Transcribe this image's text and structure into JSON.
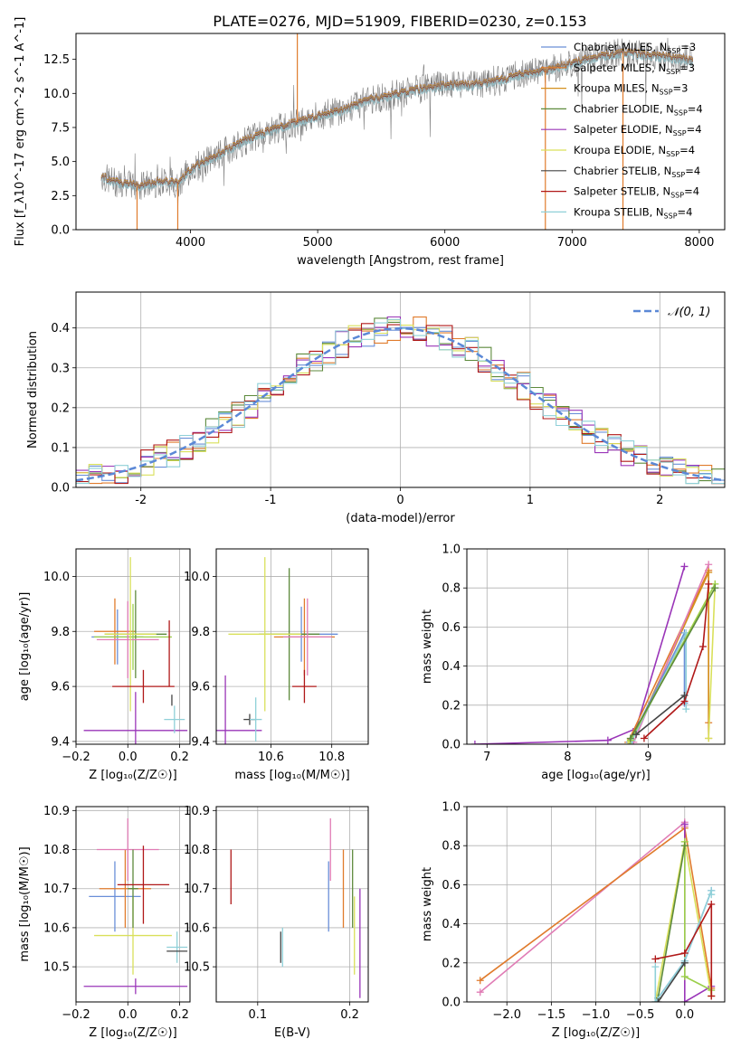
{
  "figure_title": "PLATE=0276, MJD=51909, FIBERID=0230, z=0.153",
  "colors": {
    "Chabrier MILES": "#6a8fd8",
    "Salpeter MILES": "#e07b2c",
    "Kroupa MILES": "#d4901e",
    "Chabrier ELODIE": "#5d8a3c",
    "Salpeter ELODIE": "#9a35b8",
    "Kroupa ELODIE": "#d9e05a",
    "Chabrier STELIB": "#444444",
    "Salpeter STELIB": "#b01818",
    "Kroupa STELIB": "#8fd0d8",
    "extra_pink": "#e07cb5",
    "extra_green": "#9bcf4a",
    "gauss": "#5b88d6",
    "data": "#808080"
  },
  "chart_data": [
    {
      "id": "spectrum",
      "type": "line",
      "xlabel": "wavelength [Angstrom, rest frame]",
      "ylabel": "Flux [f_λ10^-17 erg cm^-2 s^-1 A^-1]",
      "xlim": [
        3100,
        8200
      ],
      "ylim": [
        0,
        14.4
      ],
      "xticks": [
        4000,
        5000,
        6000,
        7000,
        8000
      ],
      "yticks": [
        0.0,
        2.5,
        5.0,
        7.5,
        10.0,
        12.5
      ],
      "grid": false,
      "legend_position": "right",
      "series": [
        {
          "name": "Chabrier MILES",
          "nssp": "3",
          "color": "#6a8fd8"
        },
        {
          "name": "Salpeter MILES",
          "nssp": "3",
          "color": "#e07b2c"
        },
        {
          "name": "Kroupa MILES",
          "nssp": "3",
          "color": "#d4901e"
        },
        {
          "name": "Chabrier ELODIE",
          "nssp": "4",
          "color": "#5d8a3c"
        },
        {
          "name": "Salpeter ELODIE",
          "nssp": "4",
          "color": "#9a35b8"
        },
        {
          "name": "Kroupa ELODIE",
          "nssp": "4",
          "color": "#d9e05a"
        },
        {
          "name": "Chabrier STELIB",
          "nssp": "4",
          "color": "#444444"
        },
        {
          "name": "Salpeter STELIB",
          "nssp": "4",
          "color": "#b01818"
        },
        {
          "name": "Kroupa STELIB",
          "nssp": "4",
          "color": "#8fd0d8"
        }
      ],
      "continuum": [
        [
          3300,
          3.9
        ],
        [
          3400,
          3.5
        ],
        [
          3600,
          3.2
        ],
        [
          3800,
          3.6
        ],
        [
          3900,
          3.4
        ],
        [
          4000,
          4.4
        ],
        [
          4200,
          5.4
        ],
        [
          4400,
          6.4
        ],
        [
          4600,
          7.2
        ],
        [
          4800,
          7.8
        ],
        [
          5000,
          8.3
        ],
        [
          5200,
          8.8
        ],
        [
          5400,
          9.5
        ],
        [
          5600,
          9.9
        ],
        [
          5800,
          10.3
        ],
        [
          6000,
          10.6
        ],
        [
          6200,
          10.6
        ],
        [
          6400,
          10.9
        ],
        [
          6600,
          11.4
        ],
        [
          6800,
          11.7
        ],
        [
          7000,
          12.2
        ],
        [
          7200,
          12.7
        ],
        [
          7400,
          13.0
        ],
        [
          7600,
          12.8
        ],
        [
          7800,
          12.6
        ],
        [
          7950,
          12.4
        ]
      ]
    },
    {
      "id": "residuals",
      "type": "step",
      "xlabel": "(data-model)/error",
      "ylabel": "Normed distribution",
      "xlim": [
        -2.5,
        2.5
      ],
      "ylim": [
        0,
        0.49
      ],
      "xticks": [
        -2,
        -1,
        0,
        1,
        2
      ],
      "yticks": [
        0.0,
        0.1,
        0.2,
        0.3,
        0.4
      ],
      "grid": true,
      "legend": [
        "𝒩(0, 1)"
      ],
      "legend_position": "top-right",
      "gauss_color": "#5b88d6"
    },
    {
      "id": "age-vs-Z",
      "type": "errorbar",
      "xlabel": "Z [log₁₀(Z/Z☉)]",
      "ylabel": "age [log₁₀(age/yr)]",
      "xlim": [
        -0.2,
        0.24
      ],
      "ylim": [
        9.39,
        10.1
      ],
      "xticks": [
        -0.2,
        0.0,
        0.2
      ],
      "xticklabels": [
        "−0.2",
        "0.0",
        "0.2"
      ],
      "yticks": [
        9.4,
        9.6,
        9.8,
        10.0
      ],
      "grid": true,
      "points": [
        {
          "x": -0.04,
          "y": 9.78,
          "xerr": 0.1,
          "yerr": 0.1,
          "color": "#6a8fd8"
        },
        {
          "x": -0.05,
          "y": 9.8,
          "xerr": 0.08,
          "yerr": 0.12,
          "color": "#e07b2c"
        },
        {
          "x": 0.02,
          "y": 9.78,
          "xerr": 0.15,
          "yerr": 0.12,
          "color": "#9bcf4a"
        },
        {
          "x": 0.03,
          "y": 9.79,
          "xerr": 0.12,
          "yerr": 0.16,
          "color": "#5d8a3c"
        },
        {
          "x": 0.0,
          "y": 9.77,
          "xerr": 0.12,
          "yerr": 0.14,
          "color": "#e07cb5"
        },
        {
          "x": 0.01,
          "y": 9.79,
          "xerr": 0.1,
          "yerr": 0.28,
          "color": "#d9e05a"
        },
        {
          "x": 0.03,
          "y": 9.44,
          "xerr": 0.2,
          "yerr": 0.14,
          "color": "#9a35b8"
        },
        {
          "x": 0.06,
          "y": 9.6,
          "xerr": 0.12,
          "yerr": 0.06,
          "color": "#b01818"
        },
        {
          "x": 0.16,
          "y": 9.72,
          "xerr": 0.0,
          "yerr": 0.12,
          "color": "#b01818"
        },
        {
          "x": 0.17,
          "y": 9.55,
          "xerr": 0.0,
          "yerr": 0.02,
          "color": "#444444"
        },
        {
          "x": 0.18,
          "y": 9.48,
          "xerr": 0.04,
          "yerr": 0.05,
          "color": "#8fd0d8"
        }
      ]
    },
    {
      "id": "age-vs-mass",
      "type": "errorbar",
      "xlabel": "mass [log₁₀(M/M☉)]",
      "ylabel": "",
      "xlim": [
        10.42,
        10.92
      ],
      "ylim": [
        9.39,
        10.1
      ],
      "xticks": [
        10.6,
        10.8
      ],
      "xticklabels": [
        "10.6",
        "10.8"
      ],
      "yticks": [
        9.4,
        9.6,
        9.8,
        10.0
      ],
      "grid": true,
      "points": [
        {
          "x": 10.7,
          "y": 9.79,
          "xerr": 0.12,
          "yerr": 0.1,
          "color": "#6a8fd8"
        },
        {
          "x": 10.71,
          "y": 9.78,
          "xerr": 0.1,
          "yerr": 0.14,
          "color": "#e07b2c"
        },
        {
          "x": 10.66,
          "y": 9.79,
          "xerr": 0.1,
          "yerr": 0.24,
          "color": "#5d8a3c"
        },
        {
          "x": 10.58,
          "y": 9.79,
          "xerr": 0.12,
          "yerr": 0.28,
          "color": "#d9e05a"
        },
        {
          "x": 10.72,
          "y": 9.78,
          "xerr": 0.08,
          "yerr": 0.14,
          "color": "#e07cb5"
        },
        {
          "x": 10.45,
          "y": 9.44,
          "xerr": 0.12,
          "yerr": 0.2,
          "color": "#9a35b8"
        },
        {
          "x": 10.71,
          "y": 9.6,
          "xerr": 0.04,
          "yerr": 0.06,
          "color": "#b01818"
        },
        {
          "x": 10.53,
          "y": 9.48,
          "xerr": 0.02,
          "yerr": 0.02,
          "color": "#444444"
        },
        {
          "x": 10.55,
          "y": 9.48,
          "xerr": 0.02,
          "yerr": 0.08,
          "color": "#8fd0d8"
        }
      ]
    },
    {
      "id": "massweight-vs-age",
      "type": "line",
      "xlabel": "age  [log₁₀(age/yr)]",
      "ylabel": "mass weight",
      "xlim": [
        6.75,
        9.95
      ],
      "ylim": [
        0,
        1
      ],
      "xticks": [
        7,
        8,
        9
      ],
      "xticklabels": [
        "7",
        "8",
        "9"
      ],
      "yticks": [
        0.0,
        0.2,
        0.4,
        0.6,
        0.8,
        1.0
      ],
      "grid": true,
      "series": [
        {
          "color": "#9a35b8",
          "x": [
            6.85,
            8.5,
            8.85,
            9.45
          ],
          "y": [
            0.0,
            0.02,
            0.08,
            0.91
          ]
        },
        {
          "color": "#e07b2c",
          "x": [
            8.75,
            9.75,
            9.75
          ],
          "y": [
            0.01,
            0.89,
            0.11
          ]
        },
        {
          "color": "#d4901e",
          "x": [
            8.8,
            9.75,
            9.75
          ],
          "y": [
            0.02,
            0.88,
            0.03
          ]
        },
        {
          "color": "#e07cb5",
          "x": [
            8.82,
            9.75
          ],
          "y": [
            0.01,
            0.92
          ]
        },
        {
          "color": "#6a8fd8",
          "x": [
            8.77,
            9.45,
            9.45
          ],
          "y": [
            0.01,
            0.57,
            0.21
          ]
        },
        {
          "color": "#8fd0d8",
          "x": [
            8.8,
            9.47,
            9.47
          ],
          "y": [
            0.02,
            0.57,
            0.18
          ]
        },
        {
          "color": "#d9e05a",
          "x": [
            8.75,
            9.83,
            9.75
          ],
          "y": [
            0.0,
            0.82,
            0.03
          ]
        },
        {
          "color": "#9bcf4a",
          "x": [
            8.78,
            9.83
          ],
          "y": [
            0.02,
            0.82
          ]
        },
        {
          "color": "#5d8a3c",
          "x": [
            8.78,
            9.83
          ],
          "y": [
            0.03,
            0.8
          ]
        },
        {
          "color": "#b01818",
          "x": [
            8.95,
            9.45,
            9.68,
            9.75
          ],
          "y": [
            0.03,
            0.22,
            0.5,
            0.82
          ]
        },
        {
          "color": "#444444",
          "x": [
            8.85,
            9.45
          ],
          "y": [
            0.05,
            0.25
          ]
        }
      ]
    },
    {
      "id": "mass-vs-Z",
      "type": "errorbar",
      "xlabel": "Z [log₁₀(Z/Z☉)]",
      "ylabel": "mass [log₁₀(M/M☉)]",
      "xlim": [
        -0.2,
        0.24
      ],
      "ylim": [
        10.41,
        10.91
      ],
      "xticks": [
        -0.2,
        0.0,
        0.2
      ],
      "xticklabels": [
        "−0.2",
        "0.0",
        "0.2"
      ],
      "yticks": [
        10.5,
        10.6,
        10.7,
        10.8,
        10.9
      ],
      "grid": true,
      "points": [
        {
          "x": -0.05,
          "y": 10.68,
          "xerr": 0.1,
          "yerr": 0.09,
          "color": "#6a8fd8"
        },
        {
          "x": -0.01,
          "y": 10.7,
          "xerr": 0.1,
          "yerr": 0.1,
          "color": "#e07b2c"
        },
        {
          "x": 0.0,
          "y": 10.8,
          "xerr": 0.12,
          "yerr": 0.08,
          "color": "#e07cb5"
        },
        {
          "x": 0.02,
          "y": 10.58,
          "xerr": 0.15,
          "yerr": 0.1,
          "color": "#d9e05a"
        },
        {
          "x": 0.02,
          "y": 10.7,
          "xerr": 0.02,
          "yerr": 0.1,
          "color": "#5d8a3c"
        },
        {
          "x": 0.03,
          "y": 10.45,
          "xerr": 0.2,
          "yerr": 0.02,
          "color": "#9a35b8"
        },
        {
          "x": 0.06,
          "y": 10.71,
          "xerr": 0.1,
          "yerr": 0.1,
          "color": "#b01818"
        },
        {
          "x": 0.19,
          "y": 10.55,
          "xerr": 0.04,
          "yerr": 0.04,
          "color": "#8fd0d8"
        },
        {
          "x": 0.19,
          "y": 10.54,
          "xerr": 0.04,
          "yerr": 0.0,
          "color": "#444444"
        }
      ]
    },
    {
      "id": "mass-vs-ebv",
      "type": "errorbar",
      "xlabel": "E(B-V)",
      "ylabel": "",
      "xlim": [
        0.055,
        0.22
      ],
      "ylim": [
        10.41,
        10.91
      ],
      "xticks": [
        0.1,
        0.2
      ],
      "xticklabels": [
        "0.1",
        "0.2"
      ],
      "yticks": [
        10.5,
        10.6,
        10.7,
        10.8,
        10.9
      ],
      "grid": true,
      "points": [
        {
          "x": 0.071,
          "y": 10.73,
          "xerr": 0.0,
          "yerr": 0.07,
          "color": "#b01818"
        },
        {
          "x": 0.125,
          "y": 10.55,
          "xerr": 0.0,
          "yerr": 0.04,
          "color": "#444444"
        },
        {
          "x": 0.127,
          "y": 10.55,
          "xerr": 0.0,
          "yerr": 0.05,
          "color": "#8fd0d8"
        },
        {
          "x": 0.177,
          "y": 10.68,
          "xerr": 0.0,
          "yerr": 0.09,
          "color": "#6a8fd8"
        },
        {
          "x": 0.179,
          "y": 10.8,
          "xerr": 0.0,
          "yerr": 0.08,
          "color": "#e07cb5"
        },
        {
          "x": 0.193,
          "y": 10.7,
          "xerr": 0.0,
          "yerr": 0.1,
          "color": "#e07b2c"
        },
        {
          "x": 0.203,
          "y": 10.7,
          "xerr": 0.0,
          "yerr": 0.1,
          "color": "#5d8a3c"
        },
        {
          "x": 0.205,
          "y": 10.58,
          "xerr": 0.0,
          "yerr": 0.1,
          "color": "#d9e05a"
        },
        {
          "x": 0.211,
          "y": 10.56,
          "xerr": 0.0,
          "yerr": 0.14,
          "color": "#9a35b8"
        }
      ]
    },
    {
      "id": "massweight-vs-Z",
      "type": "line",
      "xlabel": "Z [log₁₀(Z/Z☉)]",
      "ylabel": "mass weight",
      "xlim": [
        -2.45,
        0.45
      ],
      "ylim": [
        0,
        1
      ],
      "xticks": [
        -2.0,
        -1.5,
        -1.0,
        -0.5,
        0.0
      ],
      "xticklabels": [
        "−2.0",
        "−1.5",
        "−1.0",
        "−0.5",
        "0.0"
      ],
      "yticks": [
        0.0,
        0.2,
        0.4,
        0.6,
        0.8,
        1.0
      ],
      "grid": true,
      "series": [
        {
          "color": "#e07cb5",
          "x": [
            -2.3,
            0.0,
            0.0
          ],
          "y": [
            0.05,
            0.92,
            0.9
          ]
        },
        {
          "color": "#e07b2c",
          "x": [
            -2.3,
            0.0,
            0.3,
            0.3
          ],
          "y": [
            0.11,
            0.89,
            0.07,
            0.03
          ]
        },
        {
          "color": "#9a35b8",
          "x": [
            0.0,
            0.0,
            0.3
          ],
          "y": [
            0.91,
            0.0,
            0.08
          ]
        },
        {
          "color": "#d9e05a",
          "x": [
            -0.33,
            0.0,
            0.3
          ],
          "y": [
            0.0,
            0.82,
            0.03
          ]
        },
        {
          "color": "#9bcf4a",
          "x": [
            0.0,
            0.0,
            0.3
          ],
          "y": [
            0.82,
            0.13,
            0.06
          ]
        },
        {
          "color": "#5d8a3c",
          "x": [
            -0.3,
            0.0
          ],
          "y": [
            0.02,
            0.8
          ]
        },
        {
          "color": "#6a8fd8",
          "x": [
            -0.33,
            0.0,
            0.3
          ],
          "y": [
            0.0,
            0.21,
            0.57
          ]
        },
        {
          "color": "#8fd0d8",
          "x": [
            -0.33,
            -0.33,
            0.0,
            0.3,
            0.3
          ],
          "y": [
            0.18,
            0.0,
            0.21,
            0.57,
            0.55
          ]
        },
        {
          "color": "#b01818",
          "x": [
            -0.33,
            0.0,
            0.3,
            0.3
          ],
          "y": [
            0.22,
            0.25,
            0.5,
            0.03
          ]
        },
        {
          "color": "#444444",
          "x": [
            -0.3,
            0.0
          ],
          "y": [
            0.0,
            0.2
          ]
        }
      ]
    }
  ]
}
